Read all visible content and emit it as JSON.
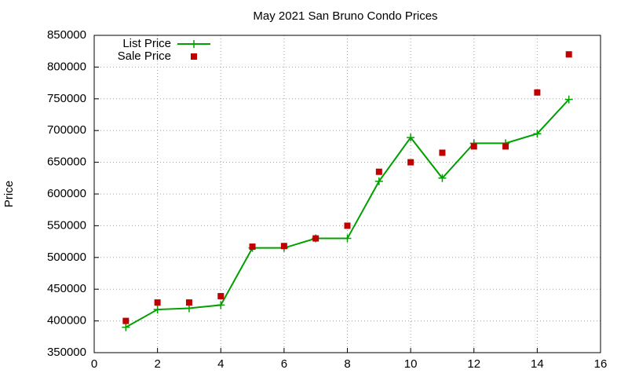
{
  "chart_data": {
    "type": "line",
    "title": "May 2021 San Bruno Condo Prices",
    "y_label": "Price",
    "x": [
      1,
      2,
      3,
      4,
      5,
      6,
      7,
      8,
      9,
      10,
      11,
      12,
      13,
      14,
      15
    ],
    "series": [
      {
        "name": "List Price",
        "color": "#00a000",
        "style": "line",
        "values": [
          390000,
          418000,
          420000,
          425000,
          515000,
          515000,
          530000,
          530000,
          620000,
          689000,
          625000,
          680000,
          680000,
          695000,
          749000
        ]
      },
      {
        "name": "Sale Price",
        "color": "#c00000",
        "style": "points",
        "values": [
          400000,
          429000,
          429000,
          439000,
          517000,
          518000,
          530000,
          550000,
          635000,
          650000,
          665000,
          675000,
          675000,
          760000,
          820000
        ]
      }
    ],
    "xlim": [
      0,
      16
    ],
    "xticks": [
      0,
      2,
      4,
      6,
      8,
      10,
      12,
      14,
      16
    ],
    "ylim": [
      350000,
      850000
    ],
    "yticks": [
      350000,
      400000,
      450000,
      500000,
      550000,
      600000,
      650000,
      700000,
      750000,
      800000,
      850000
    ],
    "grid": true,
    "legend": "top-left"
  }
}
